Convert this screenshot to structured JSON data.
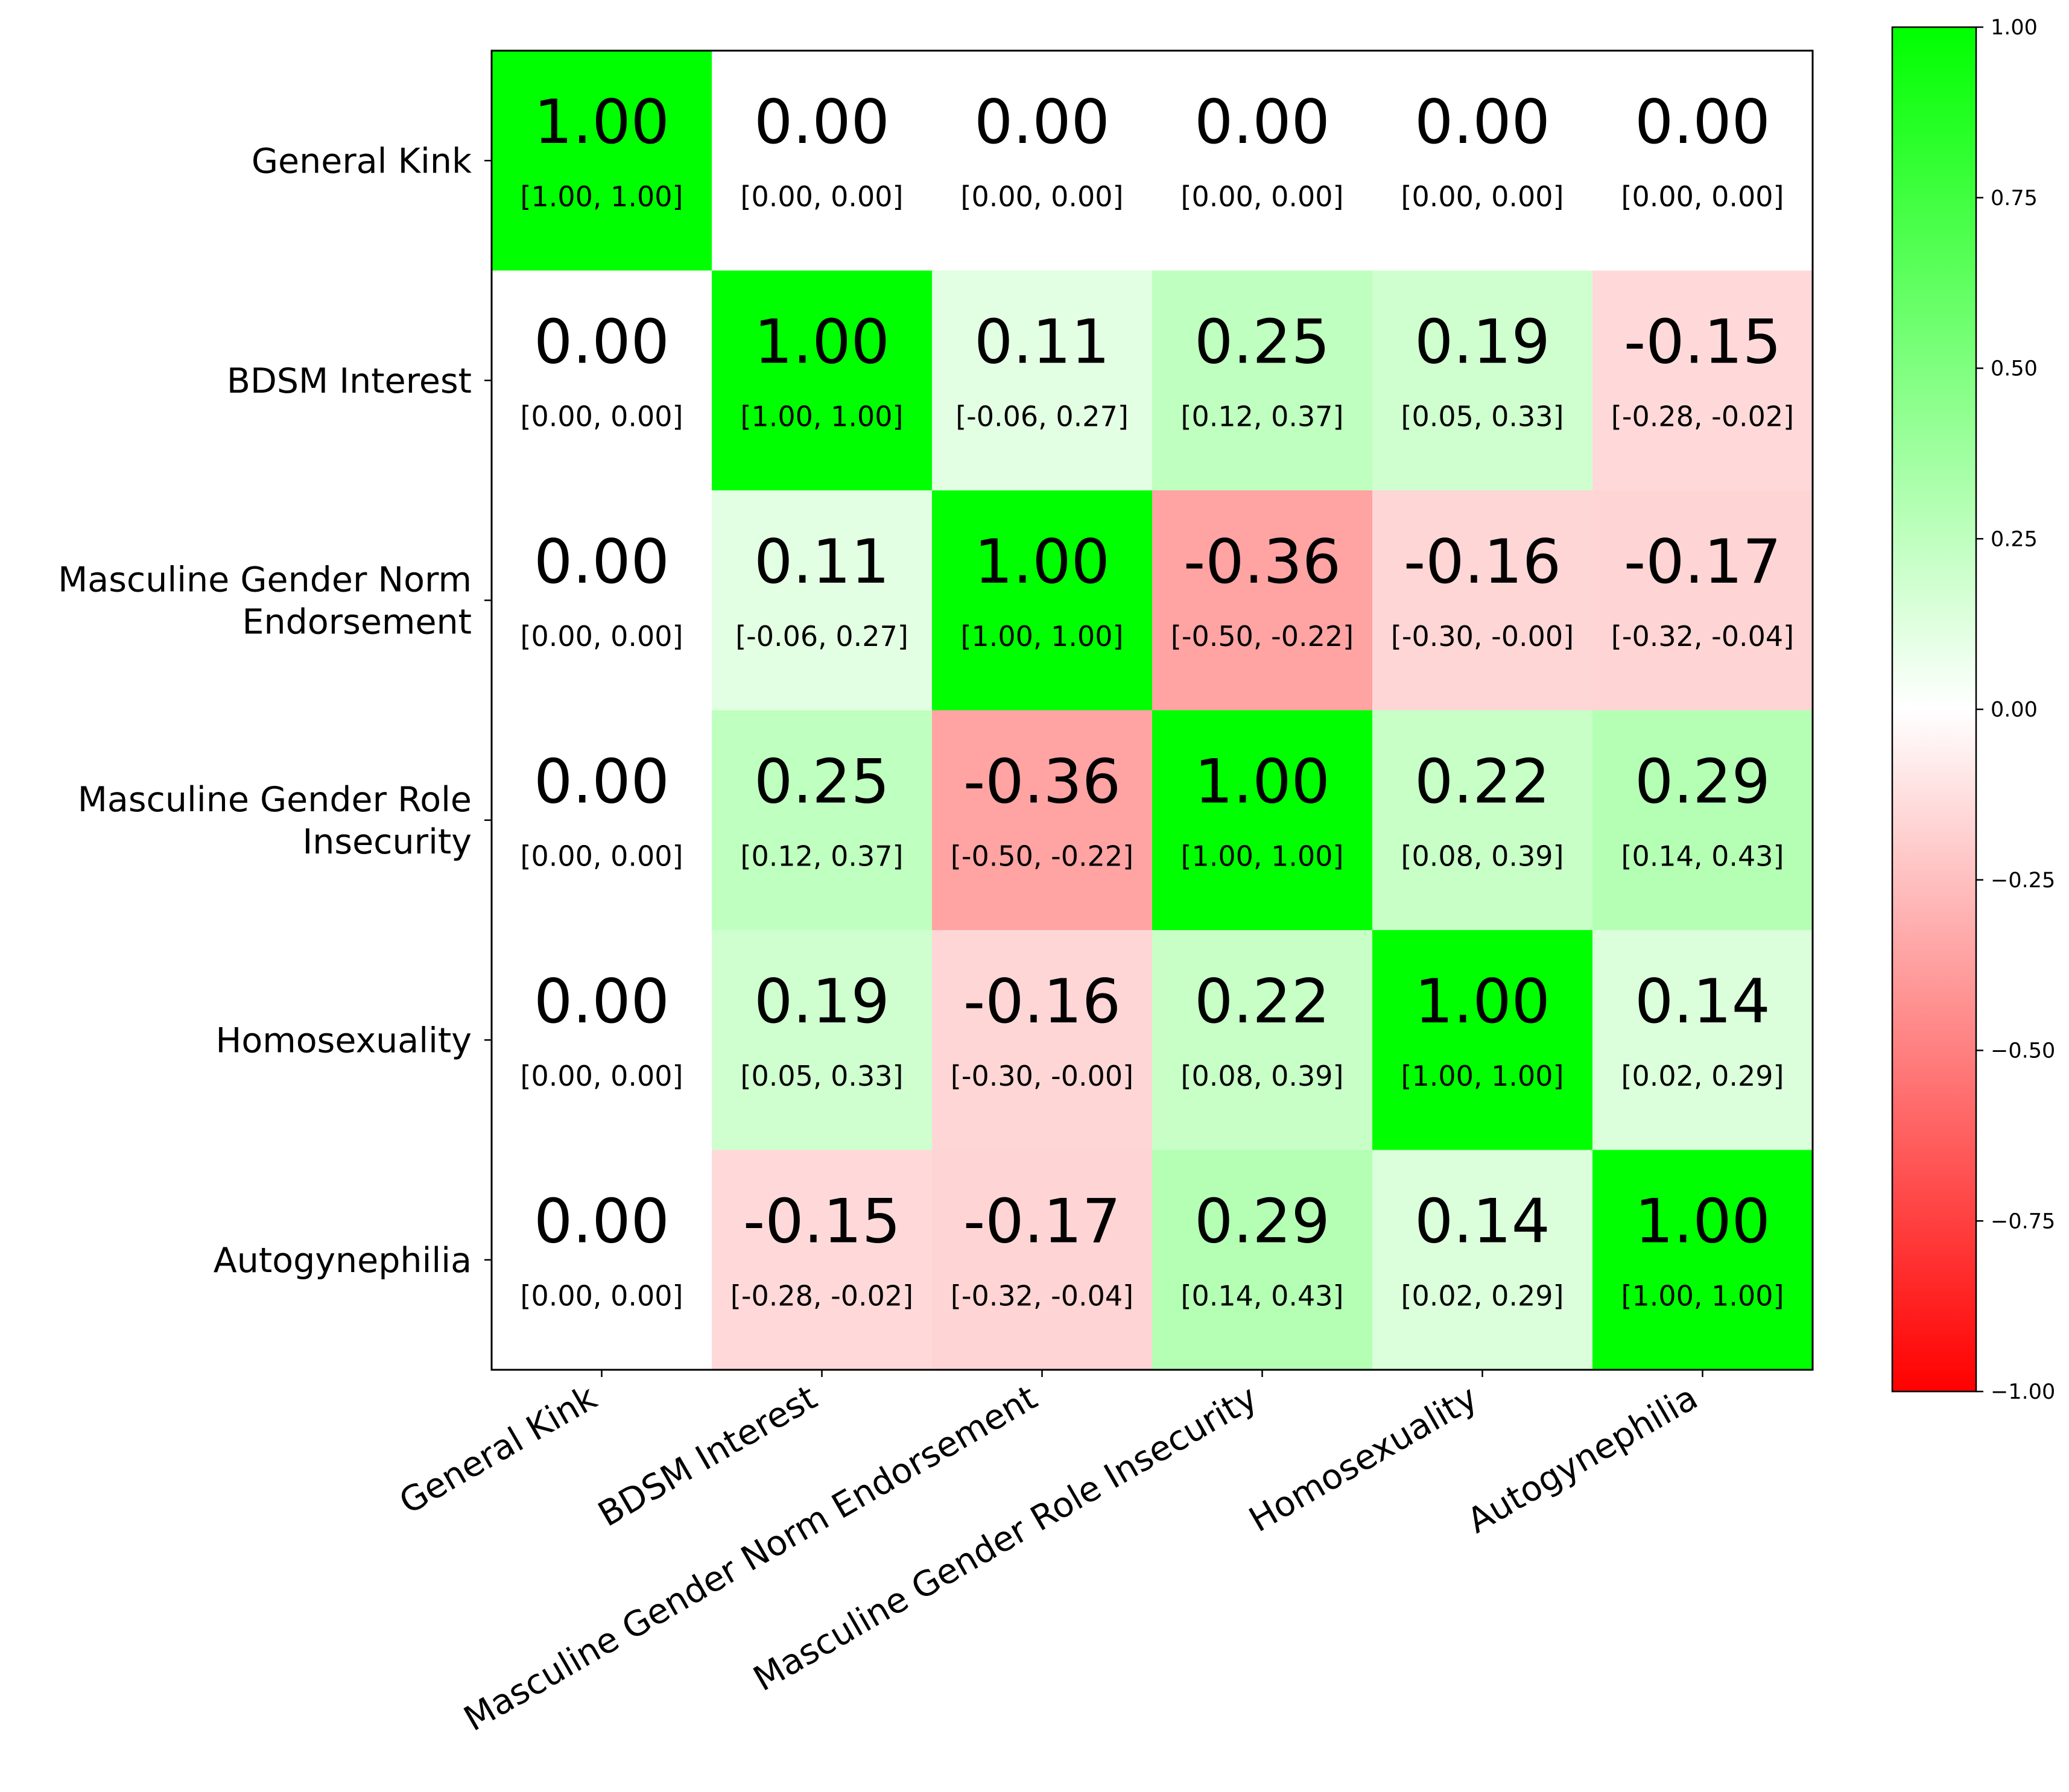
{
  "chart_data": {
    "type": "heatmap",
    "title": "",
    "row_labels": [
      [
        "General Kink"
      ],
      [
        "BDSM Interest"
      ],
      [
        "Masculine Gender Norm",
        "Endorsement"
      ],
      [
        "Masculine Gender Role",
        "Insecurity"
      ],
      [
        "Homosexuality"
      ],
      [
        "Autogynephilia"
      ]
    ],
    "col_labels": [
      "General Kink",
      "BDSM Interest",
      "Masculine Gender Norm Endorsement",
      "Masculine Gender Role Insecurity",
      "Homosexuality",
      "Autogynephilia"
    ],
    "values": [
      [
        1.0,
        0.0,
        0.0,
        0.0,
        0.0,
        0.0
      ],
      [
        0.0,
        1.0,
        0.11,
        0.25,
        0.19,
        -0.15
      ],
      [
        0.0,
        0.11,
        1.0,
        -0.36,
        -0.16,
        -0.17
      ],
      [
        0.0,
        0.25,
        -0.36,
        1.0,
        0.22,
        0.29
      ],
      [
        0.0,
        0.19,
        -0.16,
        0.22,
        1.0,
        0.14
      ],
      [
        0.0,
        -0.15,
        -0.17,
        0.29,
        0.14,
        1.0
      ]
    ],
    "value_labels": [
      [
        "1.00",
        "0.00",
        "0.00",
        "0.00",
        "0.00",
        "0.00"
      ],
      [
        "0.00",
        "1.00",
        "0.11",
        "0.25",
        "0.19",
        "-0.15"
      ],
      [
        "0.00",
        "0.11",
        "1.00",
        "-0.36",
        "-0.16",
        "-0.17"
      ],
      [
        "0.00",
        "0.25",
        "-0.36",
        "1.00",
        "0.22",
        "0.29"
      ],
      [
        "0.00",
        "0.19",
        "-0.16",
        "0.22",
        "1.00",
        "0.14"
      ],
      [
        "0.00",
        "-0.15",
        "-0.17",
        "0.29",
        "0.14",
        "1.00"
      ]
    ],
    "ci_labels": [
      [
        "[1.00, 1.00]",
        "[0.00, 0.00]",
        "[0.00, 0.00]",
        "[0.00, 0.00]",
        "[0.00, 0.00]",
        "[0.00, 0.00]"
      ],
      [
        "[0.00, 0.00]",
        "[1.00, 1.00]",
        "[-0.06, 0.27]",
        "[0.12, 0.37]",
        "[0.05, 0.33]",
        "[-0.28, -0.02]"
      ],
      [
        "[0.00, 0.00]",
        "[-0.06, 0.27]",
        "[1.00, 1.00]",
        "[-0.50, -0.22]",
        "[-0.30, -0.00]",
        "[-0.32, -0.04]"
      ],
      [
        "[0.00, 0.00]",
        "[0.12, 0.37]",
        "[-0.50, -0.22]",
        "[1.00, 1.00]",
        "[0.08, 0.39]",
        "[0.14, 0.43]"
      ],
      [
        "[0.00, 0.00]",
        "[0.05, 0.33]",
        "[-0.30, -0.00]",
        "[0.08, 0.39]",
        "[1.00, 1.00]",
        "[0.02, 0.29]"
      ],
      [
        "[0.00, 0.00]",
        "[-0.28, -0.02]",
        "[-0.32, -0.04]",
        "[0.14, 0.43]",
        "[0.02, 0.29]",
        "[1.00, 1.00]"
      ]
    ],
    "colorbar": {
      "min": -1.0,
      "max": 1.0,
      "ticks": [
        1.0,
        0.75,
        0.5,
        0.25,
        0.0,
        -0.25,
        -0.5,
        -0.75,
        -1.0
      ],
      "tick_labels": [
        "1.00",
        "0.75",
        "0.50",
        "0.25",
        "0.00",
        "−0.25",
        "−0.50",
        "−0.75",
        "−1.00"
      ],
      "colors": {
        "low": "#ff0000",
        "mid": "#ffffff",
        "high": "#00ff00"
      }
    }
  }
}
